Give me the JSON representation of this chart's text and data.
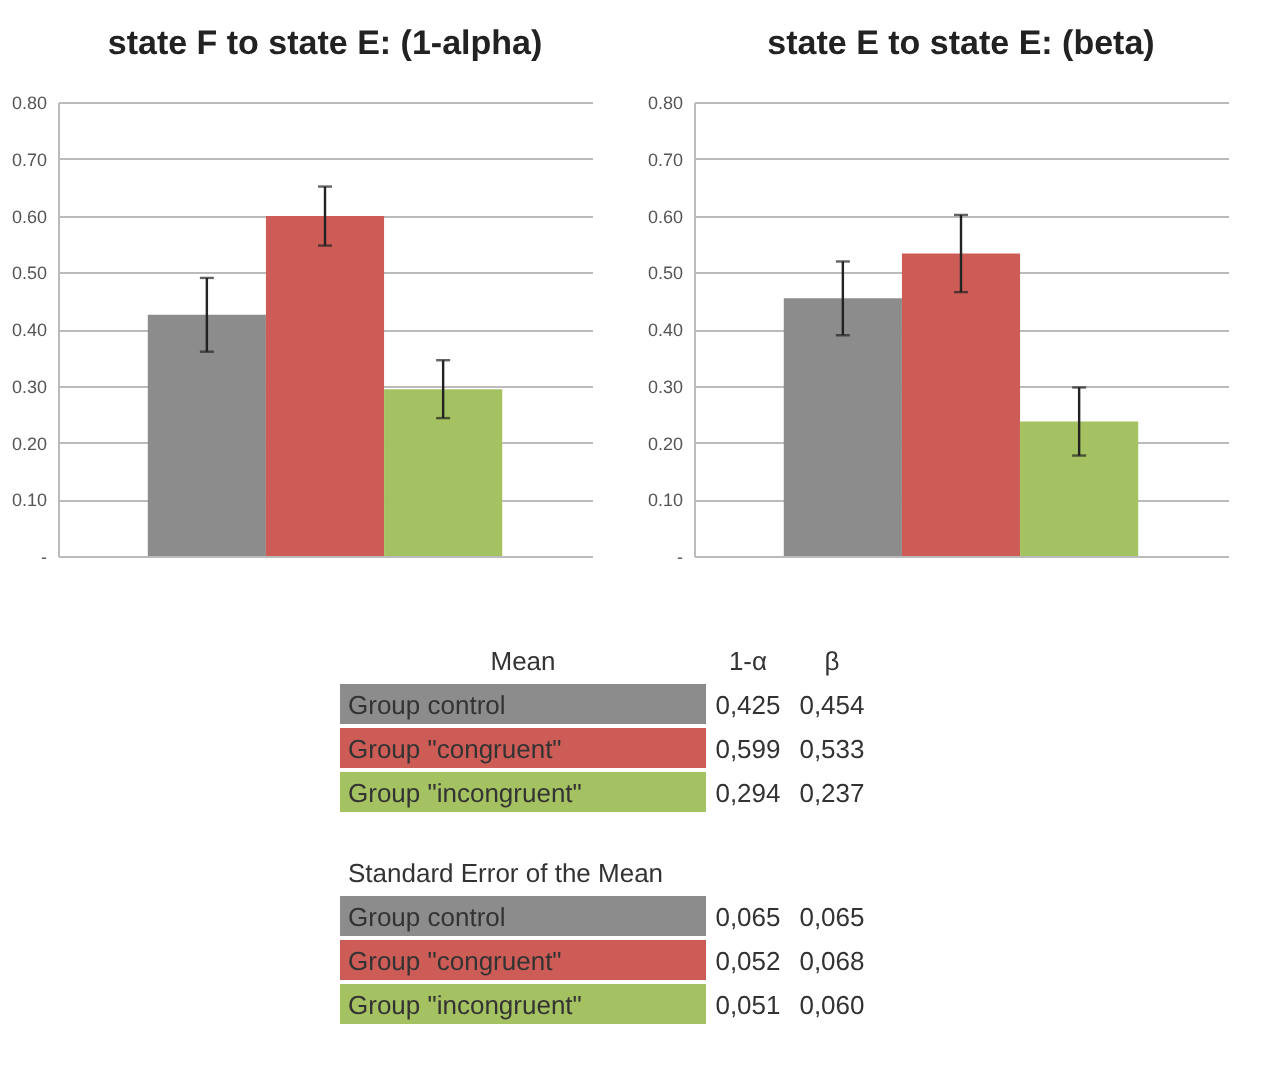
{
  "chart_data": [
    {
      "type": "bar",
      "title": "state F to state E: (1-alpha)",
      "categories": [
        null
      ],
      "ylim": [
        0,
        0.8
      ],
      "yticks": [
        {
          "value": 0,
          "label": "-"
        },
        {
          "value": 0.1,
          "label": "0.10"
        },
        {
          "value": 0.2,
          "label": "0.20"
        },
        {
          "value": 0.3,
          "label": "0.30"
        },
        {
          "value": 0.4,
          "label": "0.40"
        },
        {
          "value": 0.5,
          "label": "0.50"
        },
        {
          "value": 0.6,
          "label": "0.60"
        },
        {
          "value": 0.7,
          "label": "0.70"
        },
        {
          "value": 0.8,
          "label": "0.80"
        }
      ],
      "grid": "y",
      "annotations": [
        "1-α"
      ],
      "series": [
        {
          "name": "Group control",
          "color": "#8c8c8c",
          "values": [
            0.425
          ],
          "errors": [
            0.065
          ],
          "value_labels": [
            "0,425"
          ]
        },
        {
          "name": "Group \"congruent\"",
          "color": "#cd5c57",
          "values": [
            0.599
          ],
          "errors": [
            0.052
          ],
          "value_labels": [
            "0,599"
          ]
        },
        {
          "name": "Group \"incongruent\"",
          "color": "#a5c262",
          "values": [
            0.294
          ],
          "errors": [
            0.051
          ],
          "value_labels": [
            "0,294"
          ]
        }
      ]
    },
    {
      "type": "bar",
      "title": "state E to state E: (beta)",
      "categories": [
        null
      ],
      "ylim": [
        0,
        0.8
      ],
      "yticks": [
        {
          "value": 0,
          "label": "-"
        },
        {
          "value": 0.1,
          "label": "0.10"
        },
        {
          "value": 0.2,
          "label": "0.20"
        },
        {
          "value": 0.3,
          "label": "0.30"
        },
        {
          "value": 0.4,
          "label": "0.40"
        },
        {
          "value": 0.5,
          "label": "0.50"
        },
        {
          "value": 0.6,
          "label": "0.60"
        },
        {
          "value": 0.7,
          "label": "0.70"
        },
        {
          "value": 0.8,
          "label": "0.80"
        }
      ],
      "grid": "y",
      "annotations": [
        "β"
      ],
      "series": [
        {
          "color": "#8c8c8c",
          "values": [
            0.454
          ],
          "errors": [
            0.065
          ],
          "value_labels": [
            "0,454"
          ]
        },
        {
          "color": "#cd5c57",
          "values": [
            0.533
          ],
          "errors": [
            0.068
          ],
          "value_labels": [
            "0,533"
          ]
        },
        {
          "color": "#a5c262",
          "values": [
            0.237
          ],
          "errors": [
            0.06
          ],
          "value_labels": [
            "0,237"
          ]
        }
      ]
    },
    {
      "type": "other",
      "annotations": [
        "Mean",
        "Standard Error of the Mean",
        "0,065",
        "0,065",
        "0,052",
        "0,068",
        "0,051",
        "0,060"
      ]
    }
  ]
}
